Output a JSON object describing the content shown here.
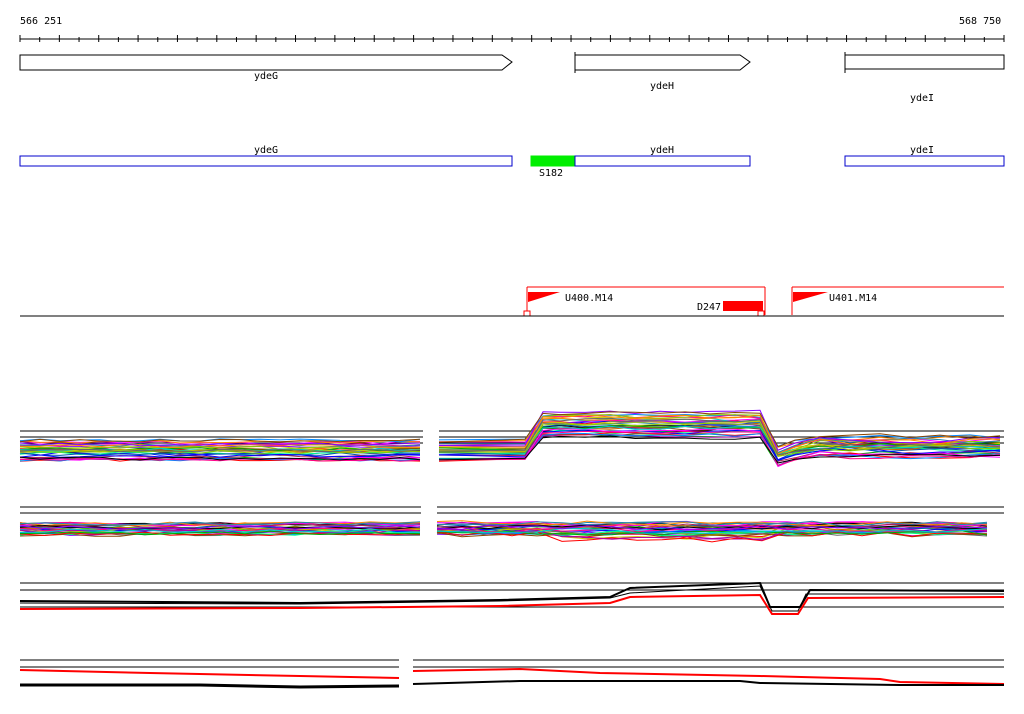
{
  "coordinates": {
    "start": "566 251",
    "end": "568 750"
  },
  "genes": [
    {
      "name": "ydeG"
    },
    {
      "name": "ydeH"
    },
    {
      "name": "ydeI"
    }
  ],
  "features": {
    "s_segment": "S182",
    "d_segment": "D247",
    "upstream": [
      "U400.M14",
      "U401.M14"
    ]
  },
  "colors": {
    "gene_box": "#0000cc",
    "s_segment": "#00ee00",
    "d_segment": "#ff0000",
    "flag": "#ff0000",
    "axis": "#000000"
  }
}
